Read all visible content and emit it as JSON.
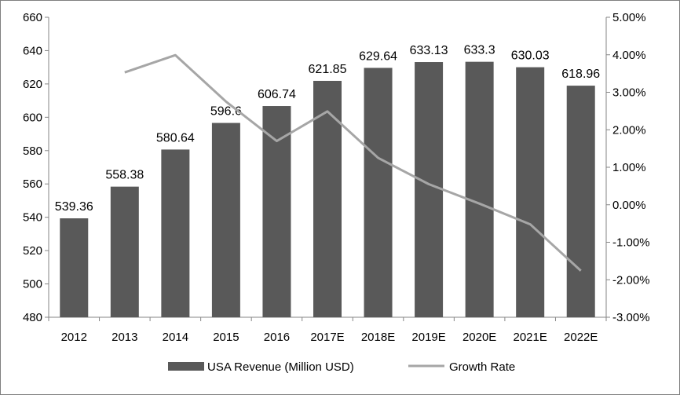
{
  "chart_data": {
    "type": "bar+line",
    "categories": [
      "2012",
      "2013",
      "2014",
      "2015",
      "2016",
      "2017E",
      "2018E",
      "2019E",
      "2020E",
      "2021E",
      "2022E"
    ],
    "series": [
      {
        "name": "USA Revenue (Million USD)",
        "type": "bar",
        "axis": "left",
        "color": "#595959",
        "values": [
          539.36,
          558.38,
          580.64,
          596.6,
          606.74,
          621.85,
          629.64,
          633.13,
          633.3,
          630.03,
          618.96
        ],
        "labels": [
          "539.36",
          "558.38",
          "580.64",
          "596.6",
          "606.74",
          "621.85",
          "629.64",
          "633.13",
          "633.3",
          "630.03",
          "618.96"
        ]
      },
      {
        "name": "Growth Rate",
        "type": "line",
        "axis": "right",
        "color": "#a6a6a6",
        "values": [
          null,
          3.53,
          3.99,
          2.75,
          1.7,
          2.49,
          1.25,
          0.55,
          0.03,
          -0.52,
          -1.76
        ]
      }
    ],
    "y_left": {
      "lim": [
        480,
        660
      ],
      "ticks": [
        "480",
        "500",
        "520",
        "540",
        "560",
        "580",
        "600",
        "620",
        "640",
        "660"
      ]
    },
    "y_right": {
      "lim": [
        -3,
        5
      ],
      "ticks": [
        "-3.00%",
        "-2.00%",
        "-1.00%",
        "0.00%",
        "1.00%",
        "2.00%",
        "3.00%",
        "4.00%",
        "5.00%"
      ]
    },
    "grid": false,
    "legend": "bottom"
  }
}
